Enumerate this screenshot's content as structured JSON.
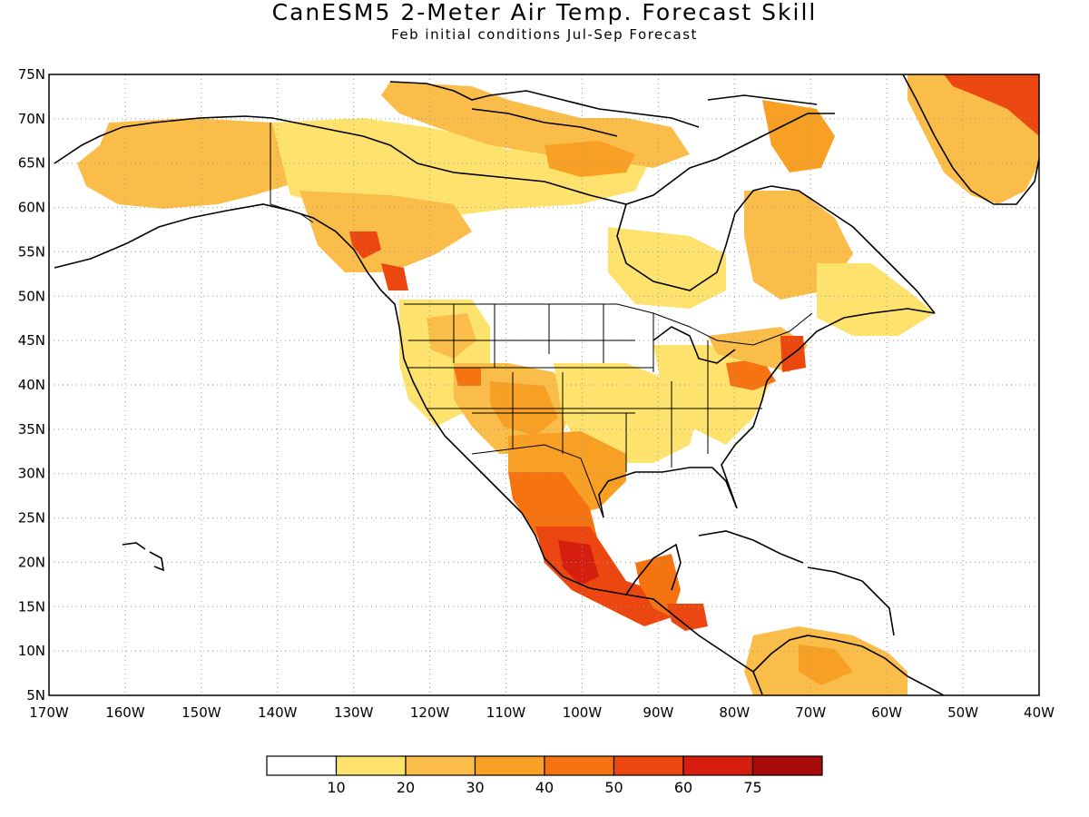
{
  "title": "CanESM5 2-Meter Air Temp. Forecast Skill",
  "subtitle": "Feb initial conditions  Jul-Sep Forecast",
  "map": {
    "lon_ticks": [
      "170W",
      "160W",
      "150W",
      "140W",
      "130W",
      "120W",
      "110W",
      "100W",
      "90W",
      "80W",
      "70W",
      "60W",
      "50W",
      "40W"
    ],
    "lat_ticks": [
      "5N",
      "10N",
      "15N",
      "20N",
      "25N",
      "30N",
      "35N",
      "40N",
      "45N",
      "50N",
      "55N",
      "60N",
      "65N",
      "70N",
      "75N"
    ],
    "lon_range": [
      -170,
      -40
    ],
    "lat_range": [
      5,
      75
    ],
    "grid": true
  },
  "legend": {
    "colors": [
      "#ffffff",
      "#fde36e",
      "#fbbd4a",
      "#f7a024",
      "#f57310",
      "#ec4710",
      "#d61e0f",
      "#a80b0b"
    ],
    "labels": [
      "10",
      "20",
      "30",
      "40",
      "50",
      "60",
      "75"
    ]
  },
  "colors": {
    "frame": "#000000",
    "grid": "#999999",
    "coast": "#000000"
  }
}
